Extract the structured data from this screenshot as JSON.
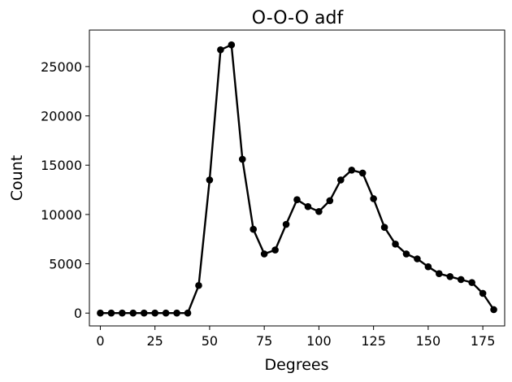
{
  "chart_data": {
    "type": "line",
    "title": "O-O-O adf",
    "xlabel": "Degrees",
    "ylabel": "Count",
    "xlim": [
      -5,
      185
    ],
    "ylim": [
      -1300,
      28700
    ],
    "xticks": [
      0,
      25,
      50,
      75,
      100,
      125,
      150,
      175
    ],
    "yticks": [
      0,
      5000,
      10000,
      15000,
      20000,
      25000
    ],
    "grid": false,
    "series": [
      {
        "color": "#000000",
        "marker": "circle",
        "x": [
          0,
          5,
          10,
          15,
          20,
          25,
          30,
          35,
          40,
          45,
          50,
          55,
          60,
          65,
          70,
          75,
          80,
          85,
          90,
          95,
          100,
          105,
          110,
          115,
          120,
          125,
          130,
          135,
          140,
          145,
          150,
          155,
          160,
          165,
          170,
          175,
          180
        ],
        "y": [
          0,
          0,
          0,
          0,
          0,
          0,
          0,
          0,
          0,
          2800,
          13500,
          26700,
          27200,
          15600,
          8500,
          6000,
          6400,
          9000,
          11500,
          10800,
          10300,
          11400,
          13500,
          14500,
          14200,
          11600,
          8700,
          7000,
          6000,
          5500,
          4700,
          4000,
          3700,
          3400,
          3100,
          2000,
          350
        ]
      }
    ]
  }
}
